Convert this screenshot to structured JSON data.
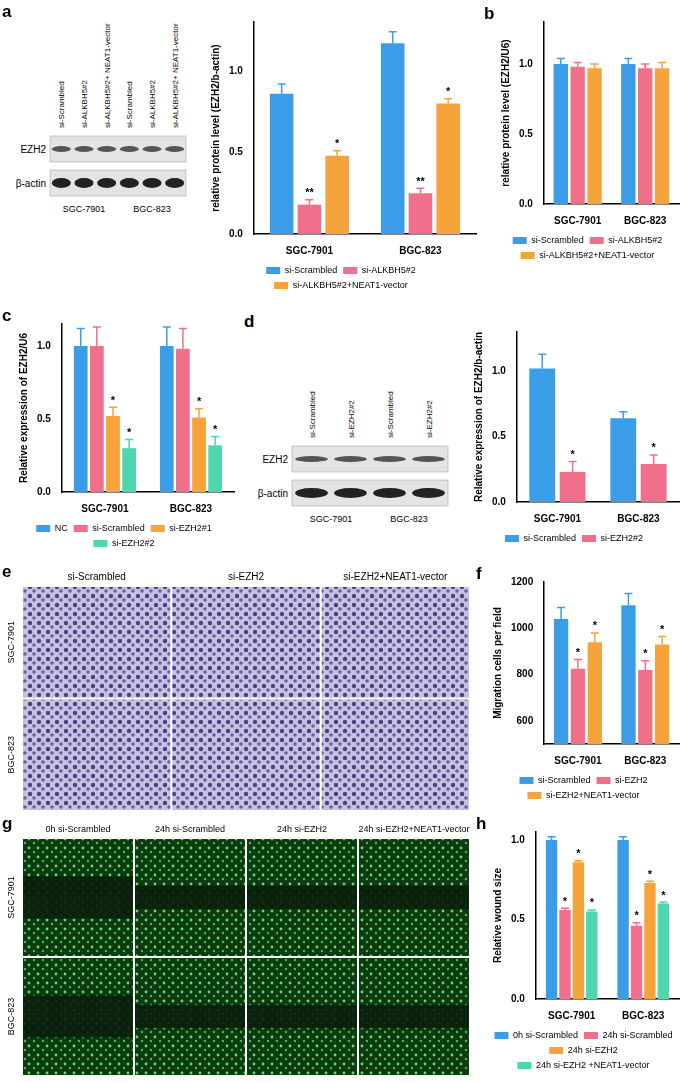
{
  "chart_data": [
    {
      "type": "bar",
      "y_label": "relative protein level (EZH2/b-actin)",
      "categories": [
        "SGC-7901",
        "BGC-823"
      ],
      "series": [
        {
          "name": "si-Scrambled",
          "color": "#3b9de8",
          "values": [
            0.86,
            1.17
          ],
          "errors": [
            0.06,
            0.07
          ],
          "significance": [
            null,
            null
          ]
        },
        {
          "name": "si-ALKBH5#2",
          "color": "#f06f8a",
          "values": [
            0.18,
            0.25
          ],
          "errors": [
            0.03,
            0.03
          ],
          "significance": [
            "**",
            "**"
          ]
        },
        {
          "name": "si-ALKBH5#2+NEAT1-vector",
          "color": "#f6a33b",
          "values": [
            0.48,
            0.8
          ],
          "errors": [
            0.03,
            0.03
          ],
          "significance": [
            "*",
            "*"
          ]
        }
      ],
      "ylim": [
        0,
        1.3
      ],
      "yticks": [
        {
          "value": 0,
          "label": "0.0"
        },
        {
          "value": 0.5,
          "label": "0.5"
        },
        {
          "value": 1,
          "label": "1.0"
        }
      ],
      "grid": false,
      "legend": "bottom"
    },
    {
      "panel": "b",
      "type": "bar",
      "y_label": "relative protein level (EZH2/U6)",
      "categories": [
        "SGC-7901",
        "BGC-823"
      ],
      "series": [
        {
          "name": "si-Scrambled",
          "color": "#3b9de8",
          "values": [
            1.0,
            1.0
          ],
          "errors": [
            0.04,
            0.04
          ],
          "significance": [
            null,
            null
          ]
        },
        {
          "name": "si-ALKBH5#2",
          "color": "#f06f8a",
          "values": [
            0.98,
            0.97
          ],
          "errors": [
            0.03,
            0.03
          ],
          "significance": [
            null,
            null
          ]
        },
        {
          "name": "si-ALKBH5#2+NEAT1-vector",
          "color": "#f6a33b",
          "values": [
            0.97,
            0.97
          ],
          "errors": [
            0.03,
            0.04
          ],
          "significance": [
            null,
            null
          ]
        }
      ],
      "ylim": [
        0,
        1.3
      ],
      "yticks": [
        {
          "value": 0,
          "label": "0.0"
        },
        {
          "value": 0.5,
          "label": "0.5"
        },
        {
          "value": 1,
          "label": "1.0"
        }
      ],
      "grid": false,
      "legend": "bottom"
    },
    {
      "panel": "c",
      "type": "bar",
      "y_label": "Relative expression of EZH2/U6",
      "categories": [
        "SGC-7901",
        "BGC-823"
      ],
      "series": [
        {
          "name": "NC",
          "color": "#3b9de8",
          "values": [
            1.0,
            1.0
          ],
          "errors": [
            0.12,
            0.13
          ],
          "significance": [
            null,
            null
          ]
        },
        {
          "name": "si-Scrambled",
          "color": "#f06f8a",
          "values": [
            1.0,
            0.98
          ],
          "errors": [
            0.13,
            0.14
          ],
          "significance": [
            null,
            null
          ]
        },
        {
          "name": "si-EZH2#1",
          "color": "#f6a33b",
          "values": [
            0.52,
            0.51
          ],
          "errors": [
            0.06,
            0.06
          ],
          "significance": [
            "*",
            "*"
          ]
        },
        {
          "name": "si-EZH2#2",
          "color": "#4ed6ae",
          "values": [
            0.3,
            0.32
          ],
          "errors": [
            0.06,
            0.06
          ],
          "significance": [
            "*",
            "*"
          ]
        }
      ],
      "ylim": [
        0,
        1.15
      ],
      "yticks": [
        {
          "value": 0,
          "label": "0.0"
        },
        {
          "value": 0.5,
          "label": "0.5"
        },
        {
          "value": 1,
          "label": "1.0"
        }
      ],
      "grid": false,
      "legend": "bottom"
    },
    {
      "type": "bar",
      "y_label": "Relative expression of EZH2/b-actin",
      "categories": [
        "SGC-7901",
        "BGC-823"
      ],
      "series": [
        {
          "name": "si-Scrambled",
          "color": "#3b9de8",
          "values": [
            1.02,
            0.64
          ],
          "errors": [
            0.11,
            0.05
          ],
          "significance": [
            null,
            null
          ]
        },
        {
          "name": "si-EZH2#2",
          "color": "#f06f8a",
          "values": [
            0.23,
            0.29
          ],
          "errors": [
            0.08,
            0.07
          ],
          "significance": [
            "*",
            "*"
          ]
        }
      ],
      "ylim": [
        0,
        1.3
      ],
      "yticks": [
        {
          "value": 0,
          "label": "0.0"
        },
        {
          "value": 0.5,
          "label": "0.5"
        },
        {
          "value": 1,
          "label": "1.0"
        }
      ],
      "grid": false,
      "legend": "bottom"
    },
    {
      "panel": "f",
      "type": "bar",
      "y_label": "Migration cells per field",
      "categories": [
        "SGC-7901",
        "BGC-823"
      ],
      "series": [
        {
          "name": "si-Scrambled",
          "color": "#3b9de8",
          "values": [
            1040,
            1100
          ],
          "errors": [
            50,
            50
          ],
          "significance": [
            null,
            null
          ]
        },
        {
          "name": "si-EZH2",
          "color": "#f06f8a",
          "values": [
            825,
            820
          ],
          "errors": [
            40,
            40
          ],
          "significance": [
            "*",
            "*"
          ]
        },
        {
          "name": "si-EZH2+NEAT1-vector",
          "color": "#f6a33b",
          "values": [
            940,
            930
          ],
          "errors": [
            40,
            35
          ],
          "significance": [
            "*",
            "*"
          ]
        }
      ],
      "ylim": [
        500,
        1200
      ],
      "yticks": [
        600,
        800,
        1000,
        1200
      ],
      "grid": false,
      "legend": "bottom"
    },
    {
      "panel": "h",
      "type": "bar",
      "y_label": "Relative wound size",
      "categories": [
        "SGC-7901",
        "BGC-823"
      ],
      "series": [
        {
          "name": "0h si-Scrambled",
          "color": "#3b9de8",
          "values": [
            1.0,
            1.0
          ],
          "errors": [
            0.02,
            0.02
          ],
          "significance": [
            null,
            null
          ]
        },
        {
          "name": "24h si-Scrambled",
          "color": "#f06f8a",
          "values": [
            0.56,
            0.46
          ],
          "errors": [
            0.01,
            0.02
          ],
          "significance": [
            "*",
            "*"
          ]
        },
        {
          "name": "24h si-EZH2",
          "color": "#f6a33b",
          "values": [
            0.86,
            0.73
          ],
          "errors": [
            0.01,
            0.01
          ],
          "significance": [
            "*",
            "*"
          ]
        },
        {
          "name": "24h si-EZH2 +NEAT1-vector",
          "color": "#4ed6ae",
          "values": [
            0.55,
            0.6
          ],
          "errors": [
            0.01,
            0.01
          ],
          "significance": [
            "*",
            "*"
          ]
        }
      ],
      "ylim": [
        0,
        1.05
      ],
      "yticks": [
        {
          "value": 0,
          "label": "0.0"
        },
        {
          "value": 0.5,
          "label": "0.5"
        },
        {
          "value": 1,
          "label": "1.0"
        }
      ],
      "grid": false,
      "legend": "bottom"
    }
  ],
  "blots": [
    {
      "panel": "a",
      "lanes": [
        "si-Scrambled",
        "si-ALKBH5#2",
        "si-ALKBH5#2+ NEAT1-vector",
        "si-Scrambled",
        "si-ALKBH5#2",
        "si-ALKBH5#2+ NEAT1-vector"
      ],
      "rows": [
        "EZH2",
        "β-actin"
      ],
      "cell_lines": [
        "SGC-7901",
        "BGC-823"
      ]
    },
    {
      "panel": "d",
      "lanes": [
        "si-Scrambled",
        "si-EZH2#2",
        "si-Scrambled",
        "si-EZH2#2"
      ],
      "rows": [
        "EZH2",
        "β-actin"
      ],
      "cell_lines": [
        "SGC-7901",
        "BGC-823"
      ]
    }
  ],
  "images": [
    {
      "panel": "e",
      "kind": "transwell",
      "columns": [
        "si-Scrambled",
        "si-EZH2",
        "si-EZH2+NEAT1-vector"
      ],
      "rows": [
        "SGC-7901",
        "BGC-823"
      ]
    },
    {
      "panel": "g",
      "kind": "wound",
      "columns": [
        "0h si-Scrambled",
        "24h si-Scrambled",
        "24h si-EZH2",
        "24h si-EZH2+NEAT1-vector"
      ],
      "rows": [
        "SGC-7901",
        "BGC-823"
      ]
    }
  ]
}
